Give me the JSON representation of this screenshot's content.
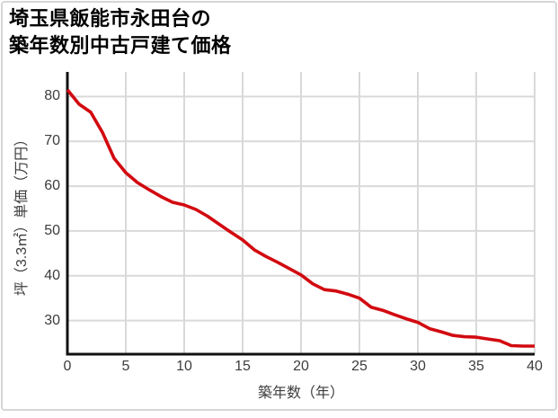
{
  "card": {
    "title_line1": "埼玉県飯能市永田台の",
    "title_line2": "築年数別中古戸建て価格"
  },
  "chart_data": {
    "type": "line",
    "title": "埼玉県飯能市永田台の築年数別中古戸建て価格",
    "xlabel": "築年数（年）",
    "ylabel": "坪（3.3㎡）単価（万円）",
    "x": [
      0,
      1,
      2,
      3,
      4,
      5,
      6,
      7,
      8,
      9,
      10,
      11,
      12,
      13,
      14,
      15,
      16,
      17,
      18,
      19,
      20,
      21,
      22,
      23,
      24,
      25,
      26,
      27,
      28,
      29,
      30,
      31,
      32,
      33,
      34,
      35,
      36,
      37,
      38,
      39,
      40
    ],
    "y": [
      81.5,
      78.3,
      76.5,
      72.0,
      66.2,
      63.0,
      60.8,
      59.2,
      57.7,
      56.4,
      55.8,
      54.8,
      53.3,
      51.5,
      49.7,
      48.0,
      45.8,
      44.3,
      43.0,
      41.6,
      40.2,
      38.2,
      36.9,
      36.6,
      35.9,
      35.0,
      33.0,
      32.3,
      31.3,
      30.4,
      29.6,
      28.2,
      27.5,
      26.7,
      26.4,
      26.3,
      25.9,
      25.5,
      24.4,
      24.3,
      24.3
    ],
    "xlim": [
      0,
      40
    ],
    "ylim": [
      22.5,
      85.5
    ],
    "x_ticks": [
      0,
      5,
      10,
      15,
      20,
      25,
      30,
      35,
      40
    ],
    "y_ticks": [
      30,
      40,
      50,
      60,
      70,
      80
    ],
    "grid": true,
    "legend": "none",
    "line_color": "#d20a10",
    "grid_color": "#d9d9d9",
    "axis_color": "#111111",
    "tick_label_color": "#3d3d3d"
  }
}
